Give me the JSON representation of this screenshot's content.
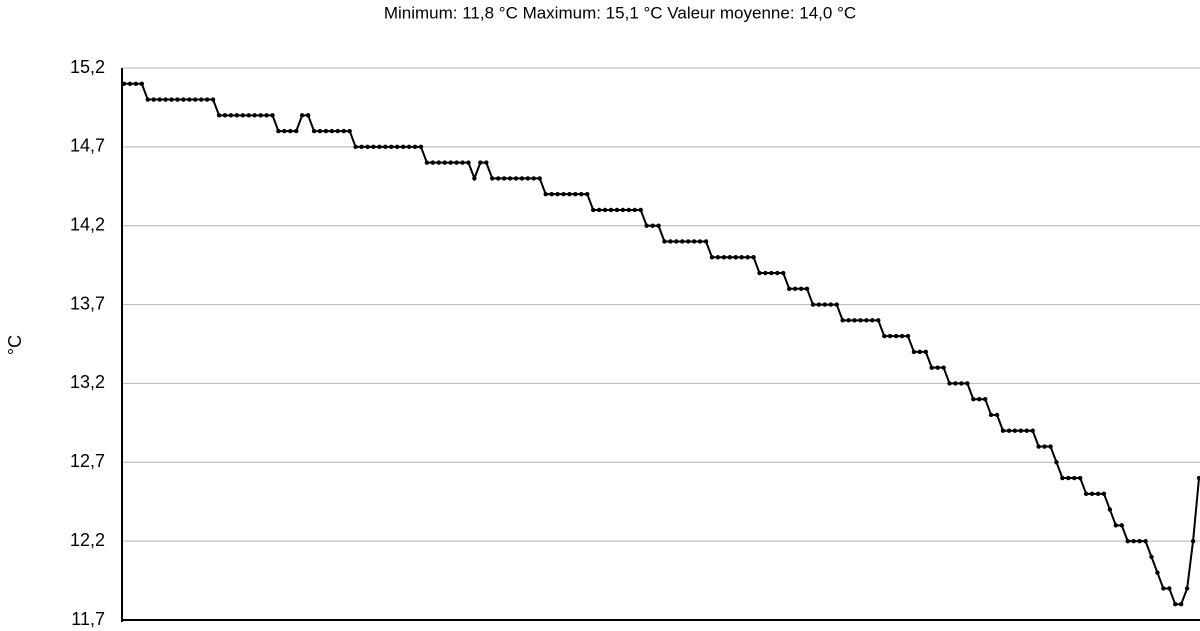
{
  "chart_data": {
    "type": "line",
    "title": "Minimum:  11,8  °C Maximum:  15,1  °C Valeur  moyenne:  14,0  °C",
    "y_label": "°C",
    "series": [
      {
        "color": "#000000",
        "values": [
          15.1,
          15.1,
          15.1,
          15.1,
          15.0,
          15.0,
          15.0,
          15.0,
          15.0,
          15.0,
          15.0,
          15.0,
          15.0,
          15.0,
          15.0,
          15.0,
          14.9,
          14.9,
          14.9,
          14.9,
          14.9,
          14.9,
          14.9,
          14.9,
          14.9,
          14.9,
          14.8,
          14.8,
          14.8,
          14.8,
          14.9,
          14.9,
          14.8,
          14.8,
          14.8,
          14.8,
          14.8,
          14.8,
          14.8,
          14.7,
          14.7,
          14.7,
          14.7,
          14.7,
          14.7,
          14.7,
          14.7,
          14.7,
          14.7,
          14.7,
          14.7,
          14.6,
          14.6,
          14.6,
          14.6,
          14.6,
          14.6,
          14.6,
          14.6,
          14.5,
          14.6,
          14.6,
          14.5,
          14.5,
          14.5,
          14.5,
          14.5,
          14.5,
          14.5,
          14.5,
          14.5,
          14.4,
          14.4,
          14.4,
          14.4,
          14.4,
          14.4,
          14.4,
          14.4,
          14.3,
          14.3,
          14.3,
          14.3,
          14.3,
          14.3,
          14.3,
          14.3,
          14.3,
          14.2,
          14.2,
          14.2,
          14.1,
          14.1,
          14.1,
          14.1,
          14.1,
          14.1,
          14.1,
          14.1,
          14.0,
          14.0,
          14.0,
          14.0,
          14.0,
          14.0,
          14.0,
          14.0,
          13.9,
          13.9,
          13.9,
          13.9,
          13.9,
          13.8,
          13.8,
          13.8,
          13.8,
          13.7,
          13.7,
          13.7,
          13.7,
          13.7,
          13.6,
          13.6,
          13.6,
          13.6,
          13.6,
          13.6,
          13.6,
          13.5,
          13.5,
          13.5,
          13.5,
          13.5,
          13.4,
          13.4,
          13.4,
          13.3,
          13.3,
          13.3,
          13.2,
          13.2,
          13.2,
          13.2,
          13.1,
          13.1,
          13.1,
          13.0,
          13.0,
          12.9,
          12.9,
          12.9,
          12.9,
          12.9,
          12.9,
          12.8,
          12.8,
          12.8,
          12.7,
          12.6,
          12.6,
          12.6,
          12.6,
          12.5,
          12.5,
          12.5,
          12.5,
          12.4,
          12.3,
          12.3,
          12.2,
          12.2,
          12.2,
          12.2,
          12.1,
          12.0,
          11.9,
          11.9,
          11.8,
          11.8,
          11.9,
          12.2,
          12.6
        ]
      }
    ],
    "ylim": [
      11.7,
      15.2
    ],
    "yticks": [
      {
        "value": 15.2,
        "label": "15,2"
      },
      {
        "value": 14.7,
        "label": "14,7"
      },
      {
        "value": 14.2,
        "label": "14,2"
      },
      {
        "value": 13.7,
        "label": "13,7"
      },
      {
        "value": 13.2,
        "label": "13,2"
      },
      {
        "value": 12.7,
        "label": "12,7"
      },
      {
        "value": 12.2,
        "label": "12,2"
      },
      {
        "value": 11.7,
        "label": "11,7"
      }
    ],
    "grid": true
  }
}
